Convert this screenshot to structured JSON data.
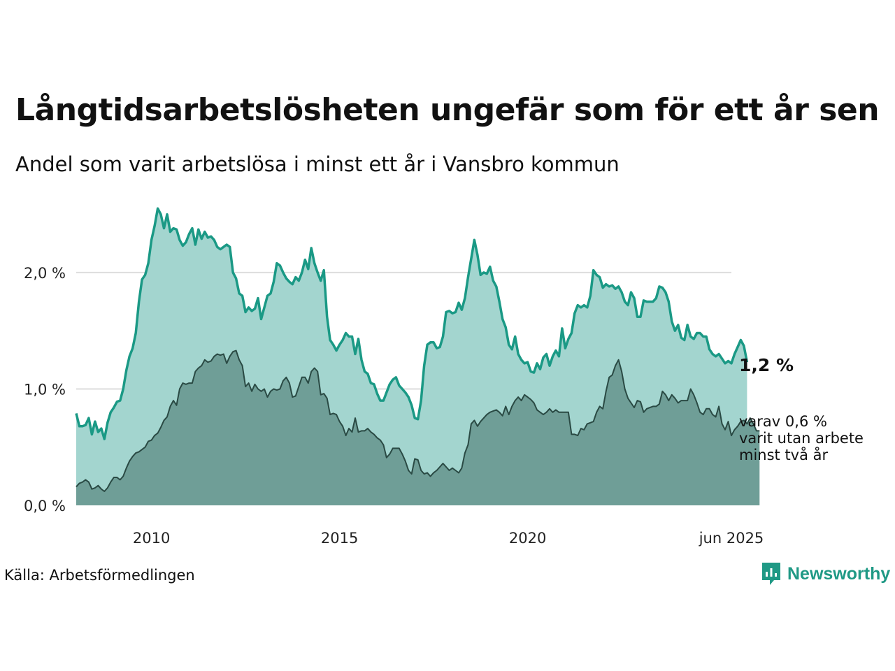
{
  "header": {
    "title": "Långtidsarbetslösheten ungefär som för ett år sen",
    "subtitle": "Andel som varit arbetslösa i minst ett år i Vansbro kommun"
  },
  "footer": {
    "source": "Källa: Arbetsförmedlingen",
    "logo_text": "Newsworthy"
  },
  "colors": {
    "series1_line": "#1a9985",
    "series1_fill": "#a3d5cf",
    "series2_line": "#2a4a44",
    "series2_fill": "#6f9e97",
    "grid": "#dddddd"
  },
  "chart_data": {
    "type": "area",
    "x_start": "2008-01",
    "x_end": "2025-06",
    "x_step": "month",
    "ylim": [
      0,
      2.6
    ],
    "xticks": [
      {
        "year": 2010,
        "label": "2010"
      },
      {
        "year": 2015,
        "label": "2015"
      },
      {
        "year": 2020,
        "label": "2020"
      },
      {
        "year": 2025.417,
        "label": "jun 2025"
      }
    ],
    "yticks": [
      {
        "value": 0,
        "label": "0,0 %"
      },
      {
        "value": 1,
        "label": "1,0 %"
      },
      {
        "value": 2,
        "label": "2,0 %"
      }
    ],
    "grid": true,
    "end_labels": {
      "series1": "1,2 %",
      "series2": [
        "varav 0,6 %",
        "varit utan arbete",
        "minst två år"
      ]
    },
    "series": [
      {
        "values": [
          0.79,
          0.68,
          0.68,
          0.69,
          0.75,
          0.61,
          0.72,
          0.63,
          0.66,
          0.57,
          0.71,
          0.8,
          0.84,
          0.89,
          0.9,
          1.0,
          1.16,
          1.28,
          1.35,
          1.48,
          1.75,
          1.94,
          1.98,
          2.08,
          2.28,
          2.4,
          2.55,
          2.5,
          2.38,
          2.5,
          2.35,
          2.38,
          2.37,
          2.28,
          2.23,
          2.26,
          2.33,
          2.38,
          2.24,
          2.37,
          2.29,
          2.35,
          2.3,
          2.31,
          2.28,
          2.22,
          2.2,
          2.22,
          2.24,
          2.22,
          2.0,
          1.95,
          1.82,
          1.8,
          1.66,
          1.7,
          1.67,
          1.69,
          1.78,
          1.6,
          1.7,
          1.8,
          1.82,
          1.92,
          2.08,
          2.06,
          2.0,
          1.95,
          1.92,
          1.9,
          1.96,
          1.93,
          2.0,
          2.11,
          2.03,
          2.21,
          2.08,
          2.0,
          1.93,
          2.02,
          1.62,
          1.42,
          1.38,
          1.33,
          1.38,
          1.42,
          1.48,
          1.45,
          1.45,
          1.3,
          1.43,
          1.25,
          1.15,
          1.13,
          1.05,
          1.04,
          0.96,
          0.9,
          0.9,
          0.97,
          1.04,
          1.08,
          1.1,
          1.03,
          1.0,
          0.97,
          0.93,
          0.86,
          0.75,
          0.74,
          0.9,
          1.2,
          1.38,
          1.4,
          1.4,
          1.35,
          1.36,
          1.45,
          1.66,
          1.67,
          1.65,
          1.66,
          1.74,
          1.68,
          1.78,
          1.96,
          2.12,
          2.28,
          2.15,
          1.98,
          2.0,
          1.99,
          2.05,
          1.93,
          1.88,
          1.75,
          1.6,
          1.53,
          1.38,
          1.34,
          1.45,
          1.3,
          1.25,
          1.22,
          1.23,
          1.15,
          1.14,
          1.22,
          1.17,
          1.27,
          1.3,
          1.2,
          1.28,
          1.33,
          1.28,
          1.52,
          1.35,
          1.43,
          1.48,
          1.65,
          1.72,
          1.7,
          1.72,
          1.7,
          1.8,
          2.02,
          1.98,
          1.96,
          1.87,
          1.9,
          1.88,
          1.89,
          1.86,
          1.88,
          1.83,
          1.75,
          1.72,
          1.83,
          1.78,
          1.62,
          1.62,
          1.76,
          1.75,
          1.75,
          1.75,
          1.78,
          1.88,
          1.87,
          1.83,
          1.75,
          1.58,
          1.5,
          1.55,
          1.44,
          1.42,
          1.55,
          1.45,
          1.43,
          1.48,
          1.48,
          1.45,
          1.45,
          1.34,
          1.3,
          1.28,
          1.3,
          1.26,
          1.22,
          1.24,
          1.22,
          1.3,
          1.36,
          1.42,
          1.37,
          1.23
        ]
      },
      {
        "values": [
          0.16,
          0.19,
          0.2,
          0.22,
          0.2,
          0.14,
          0.15,
          0.17,
          0.14,
          0.12,
          0.15,
          0.2,
          0.24,
          0.24,
          0.22,
          0.25,
          0.32,
          0.38,
          0.42,
          0.45,
          0.46,
          0.48,
          0.5,
          0.55,
          0.56,
          0.6,
          0.62,
          0.67,
          0.73,
          0.76,
          0.85,
          0.9,
          0.86,
          1.0,
          1.05,
          1.04,
          1.05,
          1.05,
          1.15,
          1.18,
          1.2,
          1.25,
          1.23,
          1.24,
          1.28,
          1.3,
          1.29,
          1.3,
          1.22,
          1.28,
          1.32,
          1.33,
          1.25,
          1.2,
          1.02,
          1.05,
          0.98,
          1.04,
          1.0,
          0.98,
          1.0,
          0.93,
          0.98,
          1.0,
          0.99,
          1.0,
          1.07,
          1.1,
          1.05,
          0.93,
          0.94,
          1.02,
          1.1,
          1.1,
          1.05,
          1.15,
          1.18,
          1.15,
          0.95,
          0.96,
          0.92,
          0.78,
          0.79,
          0.78,
          0.72,
          0.68,
          0.6,
          0.66,
          0.63,
          0.75,
          0.63,
          0.64,
          0.64,
          0.66,
          0.63,
          0.61,
          0.58,
          0.56,
          0.52,
          0.41,
          0.44,
          0.49,
          0.49,
          0.49,
          0.44,
          0.38,
          0.3,
          0.27,
          0.4,
          0.39,
          0.3,
          0.27,
          0.28,
          0.25,
          0.28,
          0.3,
          0.33,
          0.36,
          0.33,
          0.3,
          0.32,
          0.3,
          0.28,
          0.32,
          0.45,
          0.52,
          0.7,
          0.73,
          0.68,
          0.72,
          0.75,
          0.78,
          0.8,
          0.81,
          0.82,
          0.8,
          0.77,
          0.85,
          0.78,
          0.85,
          0.9,
          0.93,
          0.9,
          0.95,
          0.93,
          0.91,
          0.88,
          0.82,
          0.8,
          0.78,
          0.8,
          0.83,
          0.8,
          0.82,
          0.8,
          0.8,
          0.8,
          0.8,
          0.61,
          0.61,
          0.6,
          0.66,
          0.65,
          0.7,
          0.71,
          0.72,
          0.8,
          0.85,
          0.83,
          0.98,
          1.1,
          1.12,
          1.2,
          1.25,
          1.15,
          1.0,
          0.92,
          0.88,
          0.84,
          0.9,
          0.89,
          0.8,
          0.83,
          0.84,
          0.85,
          0.85,
          0.87,
          0.98,
          0.95,
          0.9,
          0.95,
          0.92,
          0.88,
          0.9,
          0.9,
          0.9,
          1.0,
          0.95,
          0.88,
          0.8,
          0.78,
          0.83,
          0.83,
          0.78,
          0.76,
          0.85,
          0.7,
          0.65,
          0.72,
          0.6,
          0.65,
          0.68,
          0.72,
          0.73,
          0.7,
          0.75,
          0.7,
          0.64,
          0.64
        ]
      }
    ]
  }
}
